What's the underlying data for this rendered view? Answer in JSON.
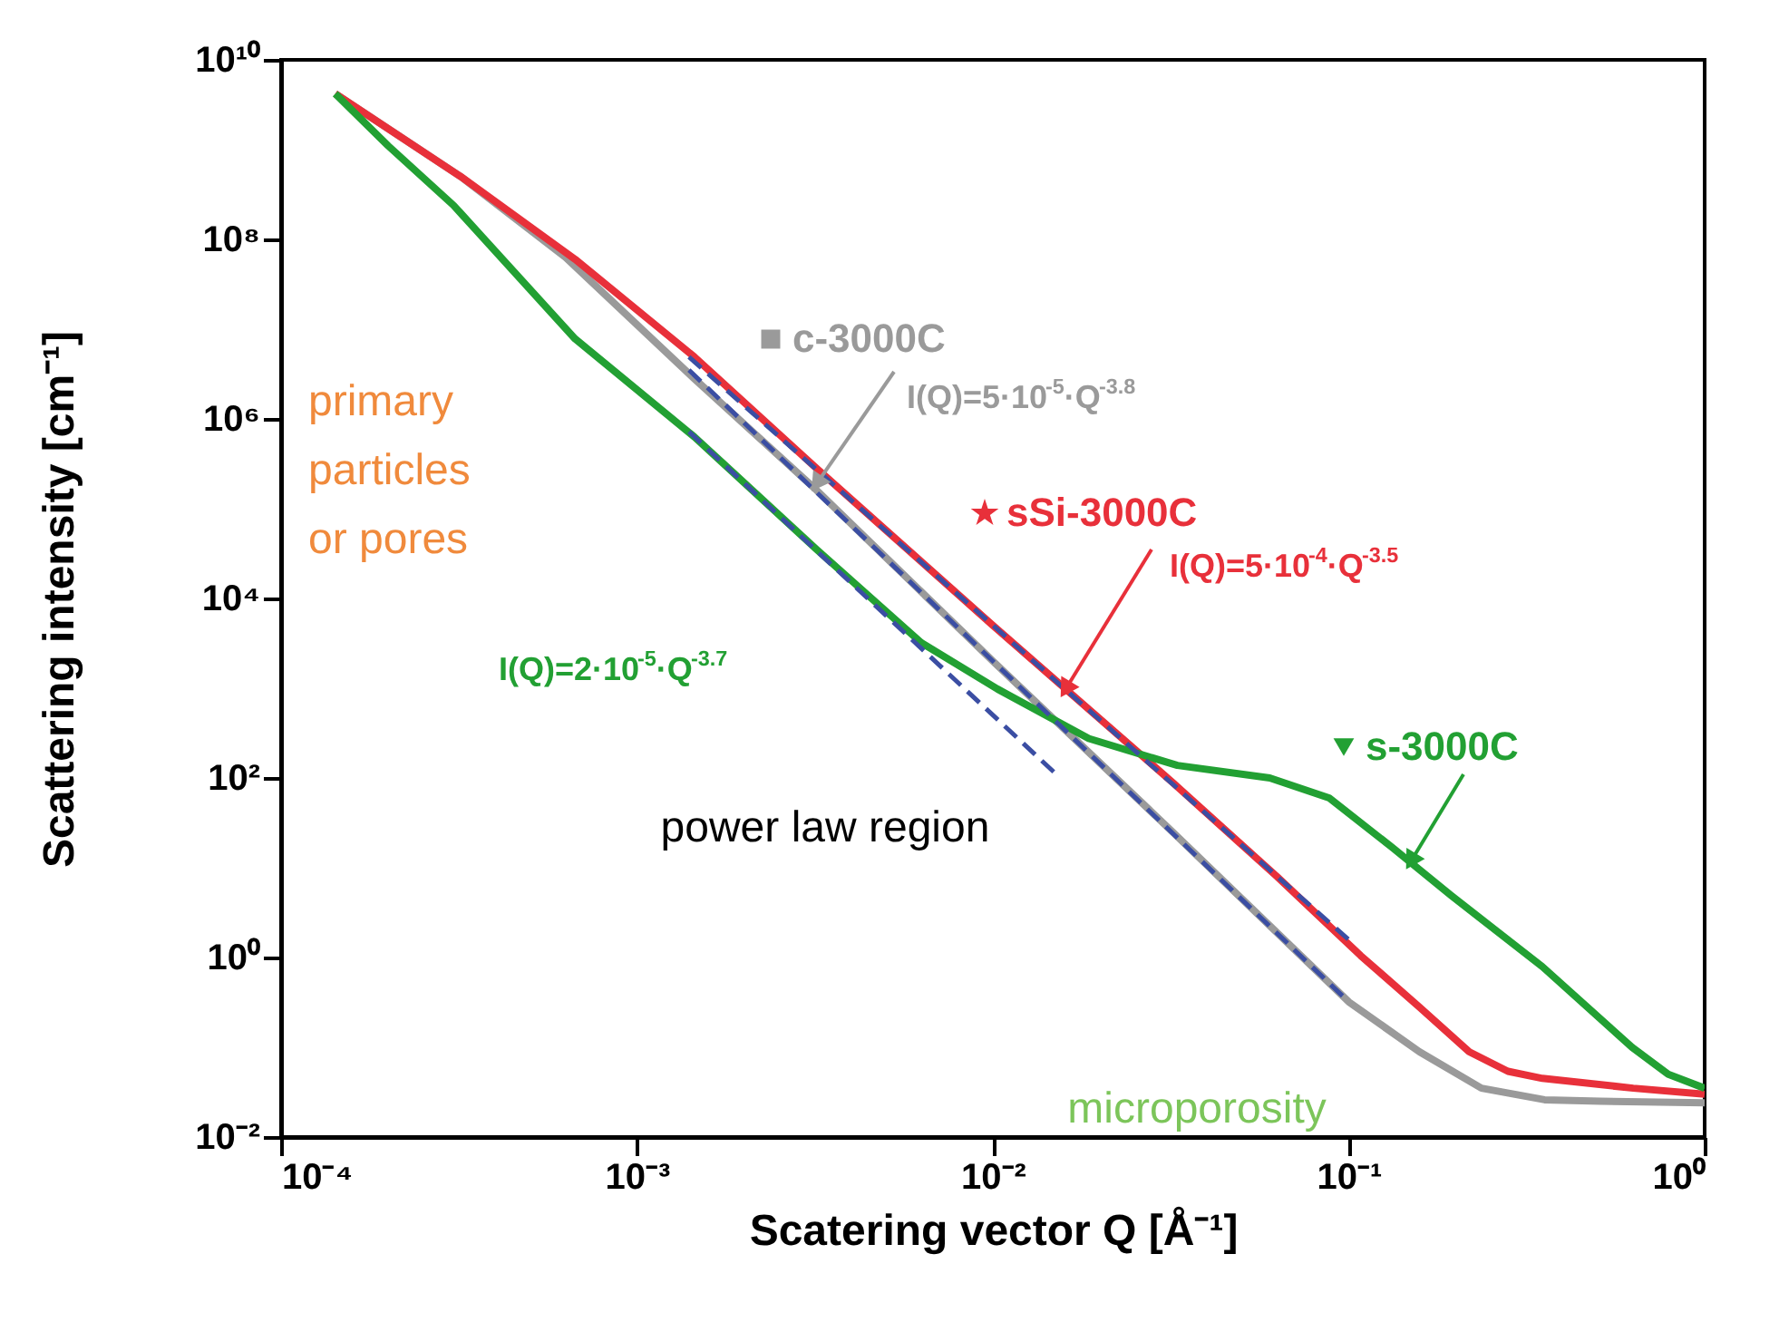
{
  "chart_data": {
    "type": "line",
    "xlabel": "Scatering vector Q [Å⁻¹]",
    "ylabel": "Scattering intensity [cm⁻¹]",
    "log": "xy",
    "xlim": [
      0.0001,
      1
    ],
    "ylim": [
      0.01,
      10000000000
    ],
    "xticks": [
      {
        "value": 0.0001,
        "label": "10⁻⁴"
      },
      {
        "value": 0.001,
        "label": "10⁻³"
      },
      {
        "value": 0.01,
        "label": "10⁻²"
      },
      {
        "value": 0.1,
        "label": "10⁻¹"
      },
      {
        "value": 1,
        "label": "10⁰"
      }
    ],
    "yticks": [
      {
        "value": 0.01,
        "label": "10⁻²"
      },
      {
        "value": 1,
        "label": "10⁰"
      },
      {
        "value": 100,
        "label": "10²"
      },
      {
        "value": 10000,
        "label": "10⁴"
      },
      {
        "value": 1000000,
        "label": "10⁶"
      },
      {
        "value": 100000000,
        "label": "10⁸"
      },
      {
        "value": 10000000000,
        "label": "10¹⁰"
      }
    ],
    "grid": false,
    "legend": "right",
    "series": [
      {
        "name": "c-3000C",
        "color": "#9a9a9a",
        "line_style": "solid",
        "x": [
          0.000142,
          0.00032,
          0.00063,
          0.00145,
          0.0032,
          0.01,
          0.032,
          0.1,
          0.158,
          0.236,
          0.355,
          0.51,
          1
        ],
        "values": [
          4200000000,
          500000000,
          63000000,
          2800000,
          160000,
          2000,
          25,
          0.32,
          0.089,
          0.035,
          0.026,
          0.025,
          0.024
        ]
      },
      {
        "name": "sSi-3000C",
        "color": "#e8303a",
        "line_style": "solid",
        "x": [
          0.000142,
          0.00032,
          0.00067,
          0.00145,
          0.0032,
          0.01,
          0.032,
          0.063,
          0.108,
          0.158,
          0.218,
          0.28,
          0.35,
          0.63,
          1
        ],
        "values": [
          4200000000,
          500000000,
          60000000,
          4900000,
          280000,
          5000,
          89,
          7.9,
          1.05,
          0.28,
          0.089,
          0.054,
          0.045,
          0.035,
          0.03
        ]
      },
      {
        "name": "s-3000C",
        "color": "#22a033",
        "line_style": "solid",
        "x": [
          0.000142,
          0.0002,
          0.000305,
          0.00067,
          0.00145,
          0.0032,
          0.0063,
          0.0103,
          0.0186,
          0.033,
          0.06,
          0.088,
          0.132,
          0.194,
          0.35,
          0.625,
          0.79,
          1
        ],
        "values": [
          4200000000,
          1100000000,
          240000000,
          7800000,
          630000,
          35000,
          3200,
          980,
          275,
          138,
          100,
          60,
          17,
          4.9,
          0.79,
          0.1,
          0.05,
          0.035
        ]
      },
      {
        "color": "#3b4ea3",
        "line_style": "dashed",
        "x": [
          0.0014,
          0.1
        ],
        "values": [
          3500000,
          0.32
        ]
      },
      {
        "color": "#3b4ea3",
        "line_style": "dashed",
        "x": [
          0.0014,
          0.1
        ],
        "values": [
          4900000,
          1.58
        ]
      },
      {
        "color": "#3b4ea3",
        "line_style": "dashed",
        "x": [
          0.0014,
          0.015
        ],
        "values": [
          720000,
          112
        ]
      }
    ],
    "annotations": [
      "primary\nparticles\nor pores",
      "power law region",
      "microporosity",
      {
        "text": "I(Q)=5·10$^{-5}$·Q$^{-3.8}$",
        "x": 0.0032,
        "y": 190000
      },
      {
        "text": "I(Q)=5·10$^{-4}$·Q$^{-3.5}$",
        "x": 0.016,
        "y": 970
      },
      "I(Q)=2·10$^{-5}$·Q$^{-3.7}$"
    ]
  }
}
